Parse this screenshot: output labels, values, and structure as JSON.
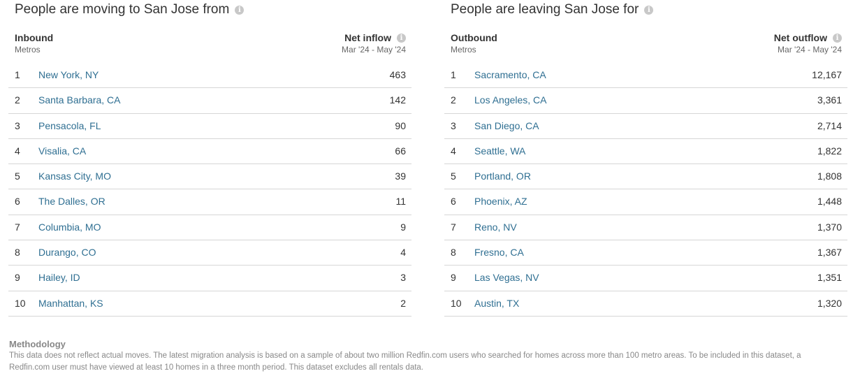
{
  "inbound": {
    "title": "People are moving to San Jose from",
    "col_left": "Inbound",
    "col_left_sub": "Metros",
    "col_right": "Net inflow",
    "col_right_sub": "Mar '24 - May '24",
    "rows": [
      {
        "rank": "1",
        "city": "New York, NY",
        "value": "463"
      },
      {
        "rank": "2",
        "city": "Santa Barbara, CA",
        "value": "142"
      },
      {
        "rank": "3",
        "city": "Pensacola, FL",
        "value": "90"
      },
      {
        "rank": "4",
        "city": "Visalia, CA",
        "value": "66"
      },
      {
        "rank": "5",
        "city": "Kansas City, MO",
        "value": "39"
      },
      {
        "rank": "6",
        "city": "The Dalles, OR",
        "value": "11"
      },
      {
        "rank": "7",
        "city": "Columbia, MO",
        "value": "9"
      },
      {
        "rank": "8",
        "city": "Durango, CO",
        "value": "4"
      },
      {
        "rank": "9",
        "city": "Hailey, ID",
        "value": "3"
      },
      {
        "rank": "10",
        "city": "Manhattan, KS",
        "value": "2"
      }
    ]
  },
  "outbound": {
    "title": "People are leaving San Jose for",
    "col_left": "Outbound",
    "col_left_sub": "Metros",
    "col_right": "Net outflow",
    "col_right_sub": "Mar '24 - May '24",
    "rows": [
      {
        "rank": "1",
        "city": "Sacramento, CA",
        "value": "12,167"
      },
      {
        "rank": "2",
        "city": "Los Angeles, CA",
        "value": "3,361"
      },
      {
        "rank": "3",
        "city": "San Diego, CA",
        "value": "2,714"
      },
      {
        "rank": "4",
        "city": "Seattle, WA",
        "value": "1,822"
      },
      {
        "rank": "5",
        "city": "Portland, OR",
        "value": "1,808"
      },
      {
        "rank": "6",
        "city": "Phoenix, AZ",
        "value": "1,448"
      },
      {
        "rank": "7",
        "city": "Reno, NV",
        "value": "1,370"
      },
      {
        "rank": "8",
        "city": "Fresno, CA",
        "value": "1,367"
      },
      {
        "rank": "9",
        "city": "Las Vegas, NV",
        "value": "1,351"
      },
      {
        "rank": "10",
        "city": "Austin, TX",
        "value": "1,320"
      }
    ]
  },
  "methodology": {
    "title": "Methodology",
    "text": "This data does not reflect actual moves. The latest migration analysis is based on a sample of about two million Redfin.com users who searched for homes across more than 100 metro areas. To be included in this dataset, a Redfin.com user must have viewed at least 10 homes in a three month period. This dataset excludes all rentals data."
  },
  "icons": {
    "info": "info-icon"
  },
  "colors": {
    "link": "#2f6f92",
    "divider": "#d6d6d6",
    "muted": "#888888"
  }
}
